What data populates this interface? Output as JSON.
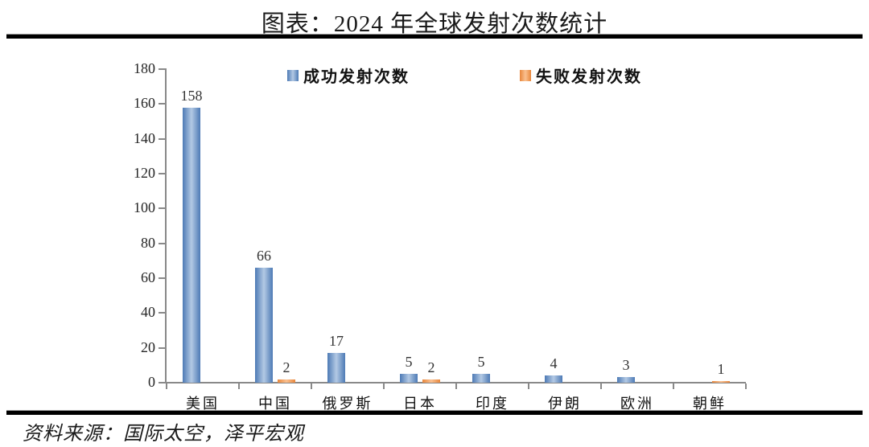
{
  "title": "图表：2024 年全球发射次数统计",
  "source": "资料来源：国际太空，泽平宏观",
  "colors": {
    "success_edge": "#4d7ab5",
    "success_center": "#b3c9e4",
    "failure_edge": "#e8873c",
    "failure_center": "#fac090",
    "axis": "#898989",
    "divider": "#000000",
    "text": "#1a1a1a"
  },
  "legend": {
    "success_label": "成功发射次数",
    "failure_label": "失败发射次数"
  },
  "chart_data": {
    "type": "bar",
    "title": "图表：2024 年全球发射次数统计",
    "categories": [
      "美国",
      "中国",
      "俄罗斯",
      "日本",
      "印度",
      "伊朗",
      "欧洲",
      "朝鲜"
    ],
    "series": [
      {
        "name": "成功发射次数",
        "values": [
          158,
          66,
          17,
          5,
          5,
          4,
          3,
          null
        ]
      },
      {
        "name": "失败发射次数",
        "values": [
          null,
          2,
          null,
          2,
          null,
          null,
          null,
          1
        ]
      }
    ],
    "xlabel": "",
    "ylabel": "",
    "ylim": [
      0,
      180
    ],
    "ytick_step": 20,
    "grid": false,
    "legend_position": "top"
  }
}
